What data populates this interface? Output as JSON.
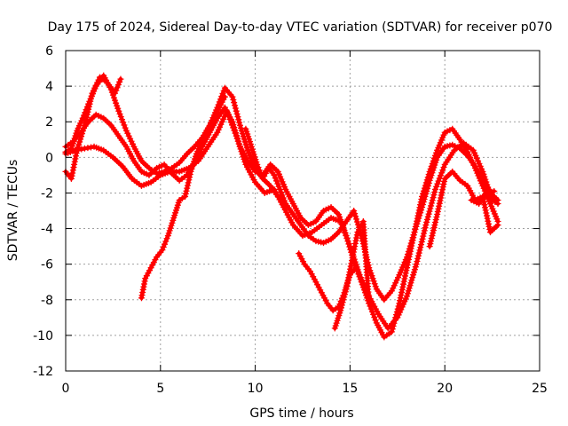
{
  "chart_data": {
    "type": "scatter",
    "title": "Day 175 of 2024, Sidereal Day-to-day VTEC variation (SDTVAR) for receiver p070",
    "xlabel": "GPS time / hours",
    "ylabel": "SDTVAR / TECUs",
    "xlim": [
      0,
      25
    ],
    "ylim": [
      -12,
      6
    ],
    "xticks": [
      0,
      5,
      10,
      15,
      20,
      25
    ],
    "yticks": [
      -12,
      -10,
      -8,
      -6,
      -4,
      -2,
      0,
      2,
      4,
      6
    ],
    "grid": true,
    "marker": "+",
    "color": "#ff0000",
    "series": [
      {
        "name": "trace-a",
        "x": [
          0.0,
          0.3,
          0.6,
          0.9,
          1.2,
          1.6,
          2.0,
          2.4,
          2.8,
          3.2,
          3.6,
          4.0,
          4.4,
          4.8,
          5.2,
          5.6,
          6.0,
          6.4,
          6.8,
          7.2,
          7.6,
          8.0,
          8.4,
          8.8,
          9.2,
          9.6,
          10.0,
          10.4,
          10.8,
          11.2,
          11.6,
          12.0,
          12.4,
          12.8,
          13.2,
          13.6,
          14.0,
          14.4,
          14.8,
          15.2,
          15.6,
          16.0,
          16.4,
          16.8,
          17.2,
          17.6,
          18.0,
          18.4,
          18.8,
          19.2,
          19.6,
          20.0,
          20.4,
          20.8,
          21.2,
          21.6,
          22.0,
          22.4,
          22.8
        ],
        "y": [
          0.3,
          0.5,
          1.5,
          2.2,
          3.0,
          4.0,
          4.6,
          3.8,
          2.6,
          1.5,
          0.6,
          -0.2,
          -0.6,
          -0.9,
          -0.8,
          -0.6,
          -0.3,
          0.2,
          0.6,
          1.1,
          1.8,
          2.8,
          3.9,
          3.4,
          1.8,
          0.4,
          -0.6,
          -1.2,
          -1.6,
          -2.2,
          -2.6,
          -3.2,
          -3.8,
          -4.4,
          -4.7,
          -4.8,
          -4.6,
          -4.2,
          -3.6,
          -3.0,
          -4.4,
          -6.2,
          -7.4,
          -8.0,
          -7.5,
          -6.6,
          -5.6,
          -4.2,
          -2.8,
          -1.3,
          0.0,
          0.6,
          0.7,
          0.5,
          0.1,
          -0.5,
          -1.2,
          -2.0,
          -2.4
        ]
      },
      {
        "name": "trace-b",
        "x": [
          0.0,
          0.4,
          0.8,
          1.2,
          1.6,
          2.0,
          2.4,
          2.8,
          3.2,
          3.6,
          4.0,
          4.4,
          4.8,
          5.2,
          5.6,
          6.0,
          6.4,
          6.8,
          7.2,
          7.6,
          8.0,
          8.4,
          8.8,
          9.2,
          9.6,
          10.0,
          10.4,
          10.8,
          11.2,
          11.6,
          12.0,
          12.4,
          12.8,
          13.2,
          13.6,
          14.0,
          14.4,
          14.8,
          15.2,
          15.6,
          16.0,
          16.4,
          16.8,
          17.2,
          17.6,
          18.0,
          18.4,
          18.8,
          19.2,
          19.6,
          20.0,
          20.4,
          20.8,
          21.2,
          21.6,
          22.0,
          22.4,
          22.8
        ],
        "y": [
          0.6,
          0.9,
          1.4,
          2.0,
          2.4,
          2.2,
          1.8,
          1.2,
          0.6,
          -0.2,
          -0.8,
          -1.0,
          -0.6,
          -0.4,
          -0.9,
          -1.3,
          -1.0,
          -0.3,
          0.6,
          1.4,
          2.2,
          2.8,
          2.0,
          0.6,
          -0.2,
          -0.8,
          -1.0,
          -0.4,
          -0.8,
          -1.8,
          -2.6,
          -3.4,
          -3.8,
          -3.6,
          -3.0,
          -2.8,
          -3.2,
          -4.4,
          -5.8,
          -7.0,
          -8.2,
          -9.3,
          -10.1,
          -9.8,
          -8.2,
          -6.2,
          -4.2,
          -2.2,
          -0.8,
          0.4,
          1.4,
          1.6,
          1.0,
          0.3,
          -0.6,
          -1.6,
          -2.6,
          -3.6
        ]
      },
      {
        "name": "trace-c",
        "x": [
          0.0,
          0.5,
          1.0,
          1.5,
          2.0,
          2.5,
          3.0,
          3.5,
          4.0,
          4.5,
          5.0,
          5.5,
          6.0,
          6.5,
          7.0,
          7.5,
          8.0,
          8.5,
          9.0,
          9.5,
          10.0,
          10.5,
          11.0,
          11.5,
          12.0,
          12.5,
          13.0,
          13.5,
          14.0,
          14.5,
          15.0,
          15.5,
          16.0,
          16.5,
          17.0,
          17.5,
          18.0,
          18.5,
          19.0,
          19.5,
          20.0,
          20.5,
          21.0,
          21.5,
          22.0,
          22.5,
          22.8
        ],
        "y": [
          0.2,
          0.4,
          0.5,
          0.6,
          0.4,
          0.0,
          -0.5,
          -1.2,
          -1.6,
          -1.4,
          -1.0,
          -0.8,
          -0.8,
          -0.6,
          -0.2,
          0.6,
          1.4,
          2.6,
          1.2,
          -0.4,
          -1.4,
          -2.0,
          -1.8,
          -2.8,
          -3.8,
          -4.4,
          -4.2,
          -3.8,
          -3.4,
          -3.6,
          -5.0,
          -6.6,
          -7.8,
          -8.8,
          -9.6,
          -9.0,
          -7.8,
          -6.0,
          -3.8,
          -1.8,
          -0.4,
          0.4,
          0.8,
          0.4,
          -0.8,
          -2.4,
          -2.6
        ]
      },
      {
        "name": "trace-d",
        "x": [
          0.0,
          0.3,
          0.6,
          1.0,
          1.4,
          1.8,
          2.2,
          2.6,
          2.9
        ],
        "y": [
          -0.8,
          -1.2,
          0.4,
          1.8,
          3.6,
          4.5,
          4.2,
          3.6,
          4.4
        ]
      },
      {
        "name": "trace-e",
        "x": [
          4.0,
          4.2,
          4.5,
          4.8,
          5.1,
          5.4,
          5.7,
          6.0,
          6.3,
          6.6,
          6.9,
          7.2,
          7.5,
          7.8,
          8.1,
          8.4
        ],
        "y": [
          -7.9,
          -6.8,
          -6.2,
          -5.6,
          -5.2,
          -4.4,
          -3.4,
          -2.4,
          -2.2,
          -0.8,
          0.2,
          0.9,
          1.6,
          2.2,
          2.8,
          3.4
        ]
      },
      {
        "name": "trace-f",
        "x": [
          9.5,
          9.8,
          10.1,
          10.4,
          10.7,
          11.0,
          11.3,
          11.6
        ],
        "y": [
          1.6,
          0.6,
          -0.4,
          -1.2,
          -0.6,
          -1.0,
          -1.8,
          -2.6
        ]
      },
      {
        "name": "trace-g",
        "x": [
          12.3,
          12.6,
          12.9,
          13.2,
          13.5,
          13.8,
          14.1,
          14.4,
          14.7,
          15.0,
          15.3
        ],
        "y": [
          -5.4,
          -6.0,
          -6.4,
          -7.0,
          -7.6,
          -8.2,
          -8.6,
          -8.4,
          -7.6,
          -6.6,
          -6.2
        ]
      },
      {
        "name": "trace-h",
        "x": [
          14.2,
          14.5,
          14.8,
          15.1,
          15.4,
          15.7,
          16.0
        ],
        "y": [
          -9.6,
          -8.6,
          -7.4,
          -5.8,
          -4.2,
          -3.6,
          -8.2
        ]
      },
      {
        "name": "trace-i",
        "x": [
          19.2,
          19.6,
          20.0,
          20.4,
          20.8,
          21.2,
          21.6,
          22.0,
          22.4,
          22.8
        ],
        "y": [
          -5.0,
          -3.2,
          -1.2,
          -0.8,
          -1.3,
          -1.6,
          -2.4,
          -2.2,
          -4.2,
          -3.8
        ]
      },
      {
        "name": "trace-j",
        "x": [
          21.4,
          21.8,
          22.2,
          22.6
        ],
        "y": [
          -2.4,
          -2.6,
          -2.0,
          -1.9
        ]
      }
    ]
  }
}
